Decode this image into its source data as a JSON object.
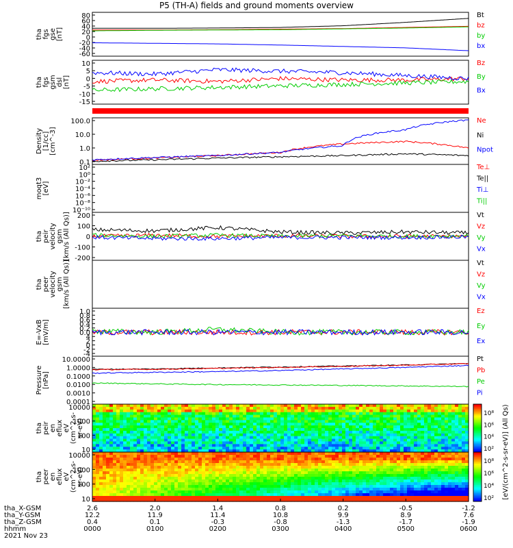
{
  "title": "P5 (TH-A) fields and ground moments overview",
  "panels": [
    {
      "id": "fgs_gse",
      "ylabel": [
        "tha",
        "fgs",
        "gse",
        "[nT]"
      ],
      "ticks": [
        "80",
        "60",
        "40",
        "20",
        "0",
        "-20",
        "-40",
        "-60"
      ],
      "legend": [
        {
          "label": "Bt",
          "color": "#000000"
        },
        {
          "label": "bz",
          "color": "#ff0000"
        },
        {
          "label": "by",
          "color": "#00cc00"
        },
        {
          "label": "bx",
          "color": "#0000ff"
        }
      ]
    },
    {
      "id": "fgs_dsl",
      "ylabel": [
        "tha",
        "fgs",
        "gsm",
        "dsl",
        "[nT]"
      ],
      "ticks": [
        "10",
        "5",
        "0",
        "-5",
        "-10",
        "-15"
      ],
      "legend": [
        {
          "label": "Bz",
          "color": "#ff0000"
        },
        {
          "label": "By",
          "color": "#00cc00"
        },
        {
          "label": "Bx",
          "color": "#0000ff"
        }
      ]
    },
    {
      "id": "density",
      "ylabel": [
        "Density",
        "[1/cc]",
        "[cm^-3]"
      ],
      "ticks": [
        "100.0",
        "10.0",
        "1.0",
        "0.1"
      ],
      "legend": [
        {
          "label": "Ne",
          "color": "#ff0000"
        },
        {
          "label": "Ni",
          "color": "#000000"
        },
        {
          "label": "Npot",
          "color": "#0000ff"
        }
      ]
    },
    {
      "id": "temp",
      "ylabel": [
        "moqt3",
        "[eV]"
      ],
      "ticks": [
        "10²",
        "10⁰",
        "10⁻²",
        "10⁻⁴",
        "10⁻⁶",
        "10⁻⁸",
        "10⁻¹⁰"
      ],
      "legend": [
        {
          "label": "Te⊥",
          "color": "#ff0000"
        },
        {
          "label": "Te||",
          "color": "#000000"
        },
        {
          "label": "Ti⊥",
          "color": "#0000ff"
        },
        {
          "label": "Ti||",
          "color": "#00cc00"
        }
      ]
    },
    {
      "id": "peir_vel",
      "ylabel": [
        "tha",
        "peir",
        "velocity",
        "gsm",
        "[km/s (All Qs)]"
      ],
      "ticks": [
        "200",
        "100",
        "0",
        "-100",
        "-200"
      ],
      "legend": [
        {
          "label": "Vt",
          "color": "#000000"
        },
        {
          "label": "Vz",
          "color": "#ff0000"
        },
        {
          "label": "Vy",
          "color": "#00cc00"
        },
        {
          "label": "Vx",
          "color": "#0000ff"
        }
      ]
    },
    {
      "id": "peer_vel",
      "ylabel": [
        "tha",
        "peer",
        "velocity",
        "gsm",
        "[km/s (All Qs)]"
      ],
      "ticks": [],
      "legend": [
        {
          "label": "Vt",
          "color": "#000000"
        },
        {
          "label": "Vz",
          "color": "#ff0000"
        },
        {
          "label": "Vy",
          "color": "#00cc00"
        },
        {
          "label": "Vx",
          "color": "#0000ff"
        }
      ]
    },
    {
      "id": "efield",
      "ylabel": [
        "E=-VxB",
        "[mV/m]"
      ],
      "ticks": [
        "1.0",
        "0.8",
        "0.6",
        "0.4",
        "0.2",
        "0.0",
        "4",
        "2",
        "0",
        "-2",
        "-4"
      ],
      "legend": [
        {
          "label": "Ez",
          "color": "#ff0000"
        },
        {
          "label": "Ey",
          "color": "#00cc00"
        },
        {
          "label": "Ex",
          "color": "#0000ff"
        }
      ]
    },
    {
      "id": "pressure",
      "ylabel": [
        "Pressure",
        "[nPa]"
      ],
      "ticks": [
        "10.0000",
        "1.0000",
        "0.1000",
        "0.0100",
        "0.0010",
        "0.0001"
      ],
      "legend": [
        {
          "label": "Pt",
          "color": "#000000"
        },
        {
          "label": "Pb",
          "color": "#ff0000"
        },
        {
          "label": "Pe",
          "color": "#00cc00"
        },
        {
          "label": "Pi",
          "color": "#0000ff"
        }
      ]
    },
    {
      "id": "peir_spec",
      "ylabel": [
        "tha",
        "peir",
        "en",
        "eflux",
        "eV",
        "(cm^2-s-",
        "sr-eV)"
      ],
      "ticks": [
        "10000",
        "1000",
        "100",
        "10"
      ],
      "cbar_ticks": [
        "10⁸",
        "10⁶",
        "10⁴",
        "10²"
      ]
    },
    {
      "id": "peer_spec",
      "ylabel": [
        "tha",
        "peer",
        "en",
        "eflux",
        "eV",
        "(cm^2-s-",
        "sr-eV)"
      ],
      "ticks": [
        "10000",
        "1000",
        "100",
        "10"
      ],
      "cbar_ticks": [
        "10⁸",
        "10⁶",
        "10⁴",
        "10²"
      ]
    }
  ],
  "colorbar_title": "[eV/(cm^2-s-sr-eV)] (All Qs)",
  "xaxis": {
    "row_labels": [
      "tha_X-GSM",
      "tha_Y-GSM",
      "tha_Z-GSM",
      "hhmm",
      "2021 Nov 23"
    ],
    "rows": [
      [
        "2.6",
        "2.0",
        "1.4",
        "0.8",
        "0.2",
        "-0.5",
        "-1.2"
      ],
      [
        "12.2",
        "11.9",
        "11.4",
        "10.8",
        "9.9",
        "8.9",
        "7.6"
      ],
      [
        "0.4",
        "0.1",
        "-0.3",
        "-0.8",
        "-1.3",
        "-1.7",
        "-1.9"
      ],
      [
        "0000",
        "0100",
        "0200",
        "0300",
        "0400",
        "0500",
        "0600"
      ]
    ]
  },
  "chart_data": {
    "type": "line",
    "title": "P5 (TH-A) fields and ground moments overview",
    "x": [
      "0000",
      "0100",
      "0200",
      "0300",
      "0400",
      "0500",
      "0600"
    ],
    "panels": [
      {
        "name": "tha fgs gse [nT]",
        "ylim": [
          -60,
          80
        ],
        "series": [
          {
            "name": "Bt",
            "values": [
              31,
              31,
              32,
              34,
              40,
              52,
              66
            ]
          },
          {
            "name": "bz",
            "values": [
              25,
              25,
              26,
              28,
              30,
              34,
              38
            ]
          },
          {
            "name": "by",
            "values": [
              22,
              24,
              25,
              26,
              29,
              32,
              36
            ]
          },
          {
            "name": "bx",
            "values": [
              -20,
              -22,
              -24,
              -28,
              -33,
              -38,
              -48
            ]
          }
        ]
      },
      {
        "name": "tha fgs dsl [nT]",
        "ylim": [
          -17,
          10
        ],
        "series": [
          {
            "name": "Bz",
            "values": [
              -3,
              -2,
              -3,
              -1,
              -2,
              -2,
              -1
            ]
          },
          {
            "name": "By",
            "values": [
              -9,
              -8,
              -7,
              -6,
              -5,
              -4,
              -3
            ]
          },
          {
            "name": "Bx",
            "values": [
              3,
              2,
              5,
              4,
              3,
              1,
              -1
            ]
          }
        ]
      },
      {
        "name": "Density [cm^-3]",
        "ylim": [
          0.1,
          100
        ],
        "log": true,
        "series": [
          {
            "name": "Ne",
            "values": [
              0.14,
              0.2,
              0.3,
              0.5,
              2.0,
              3.0,
              1.0
            ]
          },
          {
            "name": "Ni",
            "values": [
              0.12,
              0.15,
              0.2,
              0.25,
              0.3,
              0.4,
              0.3
            ]
          },
          {
            "name": "Npot",
            "values": [
              0.15,
              0.22,
              0.3,
              0.5,
              1.5,
              20,
              100
            ]
          }
        ]
      },
      {
        "name": "tha peir velocity gsm [km/s (All Qs)]",
        "ylim": [
          -200,
          200
        ],
        "series": [
          {
            "name": "Vt",
            "values": [
              60,
              50,
              80,
              40,
              30,
              40,
              30
            ]
          },
          {
            "name": "Vz",
            "values": [
              0,
              10,
              0,
              5,
              0,
              0,
              0
            ]
          },
          {
            "name": "Vy",
            "values": [
              10,
              0,
              10,
              0,
              5,
              0,
              5
            ]
          },
          {
            "name": "Vx",
            "values": [
              -10,
              -20,
              -20,
              -10,
              -10,
              -10,
              -5
            ]
          }
        ]
      },
      {
        "name": "E=-VxB [mV/m]",
        "ylim": [
          -4,
          4
        ],
        "series": [
          {
            "name": "Ez",
            "values": [
              0,
              0,
              0,
              0,
              0,
              0,
              0
            ]
          },
          {
            "name": "Ey",
            "values": [
              0.2,
              0,
              0.5,
              0,
              0,
              0,
              0
            ]
          },
          {
            "name": "Ex",
            "values": [
              0,
              0,
              0,
              0,
              0,
              0,
              0
            ]
          }
        ]
      },
      {
        "name": "Pressure [nPa]",
        "ylim": [
          0.0001,
          10
        ],
        "log": true,
        "series": [
          {
            "name": "Pt",
            "values": [
              0.55,
              0.6,
              0.8,
              1.0,
              1.3,
              1.7,
              2.5
            ]
          },
          {
            "name": "Pb",
            "values": [
              0.5,
              0.55,
              0.7,
              0.9,
              1.2,
              1.6,
              2.4
            ]
          },
          {
            "name": "Pe",
            "values": [
              0.015,
              0.012,
              0.01,
              0.009,
              0.008,
              0.007,
              0.006
            ]
          },
          {
            "name": "Pi",
            "values": [
              0.2,
              0.25,
              0.3,
              0.4,
              0.6,
              0.9,
              1.5
            ]
          }
        ]
      }
    ]
  }
}
